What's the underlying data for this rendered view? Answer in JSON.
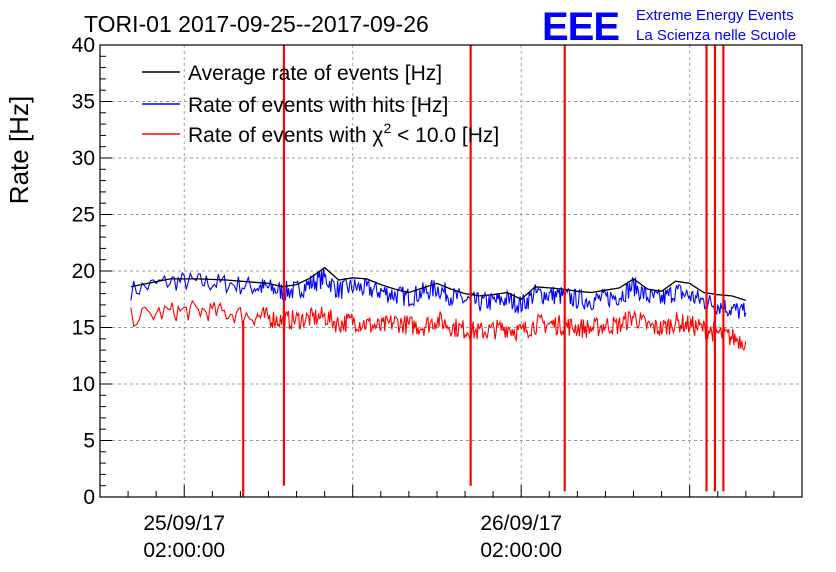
{
  "chart_data": {
    "type": "line",
    "title": "TORI-01 2017-09-25--2017-09-26",
    "ylabel": "Rate [Hz]",
    "xlabel": "",
    "ylim": [
      0,
      40
    ],
    "yticks": [
      "0",
      "5",
      "10",
      "15",
      "20",
      "25",
      "30",
      "35",
      "40"
    ],
    "xticks": [
      {
        "date": "25/09/17",
        "time": "02:00:00",
        "hours": 0
      },
      {
        "date": "26/09/17",
        "time": "02:00:00",
        "hours": 24
      }
    ],
    "xlim_hours": [
      -6,
      44
    ],
    "grid": true,
    "legend_position": "top-left",
    "series": [
      {
        "name": "Average rate of events [Hz]",
        "color": "#000000",
        "x_hours": [
          -3.8,
          -1,
          1,
          3,
          5,
          6,
          7,
          8,
          9,
          10,
          11,
          12,
          13,
          14,
          15,
          16,
          17,
          18,
          19,
          20,
          21,
          22,
          23,
          24,
          25,
          26,
          27,
          28,
          29,
          30,
          31,
          32,
          33,
          34,
          35,
          36,
          37,
          38,
          39,
          40
        ],
        "values": [
          18.6,
          19.3,
          19.3,
          19.2,
          19.0,
          18.9,
          18.6,
          18.8,
          19.4,
          20.3,
          19.2,
          19.4,
          19.3,
          18.8,
          18.4,
          18.1,
          18.5,
          18.9,
          18.4,
          18.0,
          17.8,
          17.9,
          18.1,
          17.5,
          18.6,
          18.5,
          18.4,
          18.2,
          18.1,
          18.3,
          18.5,
          19.3,
          18.4,
          18.2,
          19.1,
          18.9,
          18.1,
          17.9,
          17.8,
          17.4
        ]
      },
      {
        "name": "Rate of events with hits [Hz]",
        "color": "#0000ff",
        "x_hours": [
          -3.8,
          -1,
          1,
          3,
          5,
          6,
          7,
          8,
          9,
          10,
          11,
          12,
          13,
          14,
          15,
          16,
          17,
          18,
          19,
          20,
          21,
          22,
          23,
          24,
          25,
          26,
          27,
          28,
          29,
          30,
          31,
          32,
          33,
          34,
          35,
          36,
          37,
          38,
          39,
          40
        ],
        "values": [
          18.3,
          19.1,
          19.0,
          18.9,
          18.6,
          18.5,
          18.2,
          18.3,
          18.9,
          19.4,
          18.3,
          18.6,
          18.4,
          18.2,
          17.9,
          17.7,
          18.1,
          18.5,
          17.8,
          17.4,
          17.2,
          17.3,
          17.5,
          17.0,
          18.0,
          17.9,
          17.8,
          17.5,
          17.4,
          17.6,
          17.8,
          18.7,
          17.7,
          17.5,
          18.2,
          17.8,
          17.3,
          17.0,
          16.6,
          16.3
        ]
      },
      {
        "name": "Rate of events with χ² < 10.0 [Hz]",
        "label_main": "Rate of events with χ",
        "label_sup": "2",
        "label_tail": " < 10.0 [Hz]",
        "color": "#ff0000",
        "x_hours": [
          -3.8,
          -1,
          1,
          3,
          5,
          6,
          7,
          8,
          9,
          10,
          11,
          12,
          13,
          14,
          15,
          16,
          17,
          18,
          19,
          20,
          21,
          22,
          23,
          24,
          25,
          26,
          27,
          28,
          29,
          30,
          31,
          32,
          33,
          34,
          35,
          36,
          37,
          38,
          39,
          40
        ],
        "values": [
          15.9,
          16.4,
          16.5,
          16.3,
          16.0,
          15.9,
          15.6,
          15.7,
          15.8,
          16.0,
          15.3,
          15.6,
          15.3,
          15.0,
          15.5,
          15.2,
          15.1,
          15.7,
          15.1,
          14.8,
          14.6,
          14.8,
          15.0,
          14.6,
          15.3,
          15.3,
          15.2,
          15.0,
          14.9,
          15.2,
          15.2,
          16.0,
          15.1,
          14.9,
          15.5,
          15.2,
          14.9,
          14.5,
          14.1,
          13.8
        ]
      }
    ],
    "spikes": [
      {
        "x_hours": 4.2,
        "low": 0,
        "high": 15.6,
        "color": "#ff0000"
      },
      {
        "x_hours": 7.1,
        "low": 1.0,
        "high": 40,
        "color": "#ff0000"
      },
      {
        "x_hours": 20.4,
        "low": 1.0,
        "high": 40,
        "color": "#ff0000"
      },
      {
        "x_hours": 27.1,
        "low": 0.5,
        "high": 40,
        "color": "#ff0000"
      },
      {
        "x_hours": 37.2,
        "low": 0.5,
        "high": 40,
        "color": "#ff0000"
      },
      {
        "x_hours": 37.8,
        "low": 0.5,
        "high": 40,
        "color": "#ff0000"
      },
      {
        "x_hours": 38.4,
        "low": 0.5,
        "high": 40,
        "color": "#ff0000"
      }
    ]
  },
  "logo": {
    "mark": "EEE",
    "line1": "Extreme Energy Events",
    "line2": "La Scienza nelle Scuole",
    "color": "#0000ff"
  }
}
